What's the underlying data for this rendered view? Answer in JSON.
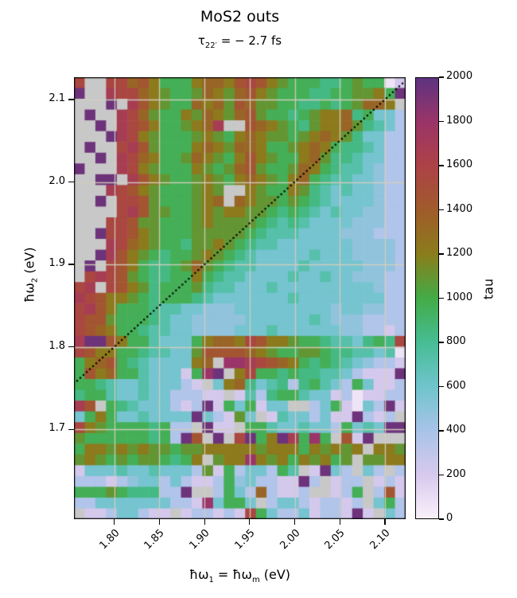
{
  "labels": {
    "title": "MoS2 outs",
    "subtitle": {
      "pre": "τ",
      "sub": "22′",
      "post": " =  − 2.7 fs"
    },
    "y_axis": {
      "pre": "ħω",
      "sub": "2",
      "post": " (eV)"
    },
    "x_axis": {
      "pre": "ħω",
      "sub1": "1",
      "mid": " = ħω",
      "sub2": "m",
      "post": " (eV)"
    },
    "colorbar": "tau"
  },
  "axes": {
    "x": {
      "tick_labels": [
        "1.80",
        "1.85",
        "1.90",
        "1.95",
        "2.00",
        "2.05",
        "2.10"
      ],
      "tick_values": [
        1.8,
        1.85,
        1.9,
        1.95,
        2.0,
        2.05,
        2.1
      ],
      "range": [
        1.7553,
        2.123
      ]
    },
    "y": {
      "tick_labels": [
        "2.1",
        "2.0",
        "1.9",
        "1.8",
        "1.7"
      ],
      "tick_values": [
        2.1,
        2.0,
        1.9,
        1.8,
        1.7
      ],
      "range": [
        1.591,
        2.127
      ]
    }
  },
  "colorbar": {
    "label": "tau",
    "tick_labels": [
      "0",
      "200",
      "400",
      "600",
      "800",
      "1000",
      "1200",
      "1400",
      "1600",
      "1800",
      "2000"
    ],
    "tick_values": [
      0,
      200,
      400,
      600,
      800,
      1000,
      1200,
      1400,
      1600,
      1800,
      2000
    ],
    "range": [
      0,
      2000
    ],
    "nan_color": "#c8c8c8",
    "colormap_stops": [
      [
        0,
        "#f9f0fa"
      ],
      [
        200,
        "#d6c9ed"
      ],
      [
        400,
        "#a8c3e8"
      ],
      [
        600,
        "#6fc4cc"
      ],
      [
        800,
        "#46bd93"
      ],
      [
        1000,
        "#43ab47"
      ],
      [
        1200,
        "#8a7d1b"
      ],
      [
        1400,
        "#a05b2b"
      ],
      [
        1600,
        "#ad4247"
      ],
      [
        1800,
        "#9b3468"
      ],
      [
        2000,
        "#5e3380"
      ]
    ]
  },
  "style": {
    "gridline_color": "rgba(210,205,190,0.95)",
    "frame_color": "#000000",
    "diagonal_color": "#000000"
  },
  "chart_data": {
    "type": "heatmap",
    "title": "MoS2 outs",
    "subtitle": "τ22′ = −2.7 fs",
    "xlabel": "ħω1 = ħωm (eV)",
    "ylabel": "ħω2 (eV)",
    "colorbar_label": "tau",
    "x_range": [
      1.7553,
      2.123
    ],
    "y_range": [
      1.591,
      2.127
    ],
    "value_range": [
      0,
      2000
    ],
    "n_cols": 31,
    "n_rows": 41,
    "row_order": "top_to_bottom",
    "grid": true,
    "diagonal_line": {
      "style": "dotted",
      "from": [
        1.7553,
        1.7553
      ],
      "to": [
        2.123,
        2.123
      ]
    },
    "value_encoding": {
      ".": null,
      "0": 60,
      "1": 210,
      "2": 360,
      "3": 480,
      "4": 580,
      "5": 720,
      "6": 840,
      "7": 960,
      "8": 1090,
      "9": 1220,
      "a": 1340,
      "b": 1450,
      "c": 1560,
      "d": 1670,
      "e": 1800,
      "f": 1950
    },
    "rows": [
      "c..ccab97779aa9bcb9877766787701",
      "f..dcca98778a98ab9877766778897f",
      "...f.db9877a9a8ba8877667678aa9.",
      ".f..dca87798a98ab87767899a67442",
      "..f.dcb97789ad..ba9876899a86542",
      "...fdc9877789879a988789a9864422",
      ".f..cdb87779a98aa97789a97665422",
      "..f.dca9778a9879b98779a86654422",
      "f...dc987779878ab8778a976554322",
      "..ff.db987789879a9879a765544322",
      "...dcb98777898..987798654544322",
      "..f.ccb877789a.a988787654444322",
      "....cdb887789899887676545443322",
      "...ccb8877789888876565444433322",
      "..fccb9877788888765554444333222",
      "...dca9877688987655444444433332",
      "..fdb98767789876544444544433332",
      ".f.cb976678a8765544445444443332",
      ".cdcb87667797655444454454433322",
      "cd.cb98677786554445444444444322",
      "dcb9987677765444444454444444422",
      "cdb9777655443334444444443443322",
      "cbb8777654433333444444543332222",
      "cba9776554433334445444444332212",
      "dffb977544479aa9cb998776554676c",
      "cb9977655448bbbba98778876655450",
      "79ab76544449a.eedcba97676543221",
      "7b9a77544417ef.9c7767665542111f",
      "776544544421.49a645626754274112",
      "67754454422211.1526775441201122",
      "db.765444212f1747144..2471042f1",
      "47974454444f42184.15442411f212.",
      "c9877776722.f11.7754454427454ff",
      "8777777672fb.f.cf79fd7e7.b1f...",
      "799898988788999998999798989.998",
      "898787887679.899e989798978.8899",
      "144454454442817244275.1f42.42.2",
      "222123442421127342211f2.122.121",
      "7778766622f..2742a2112..127.2b1",
      "224444444221e4774.244212212.472",
      ".11244211.122121c742241221f1.42"
    ]
  }
}
